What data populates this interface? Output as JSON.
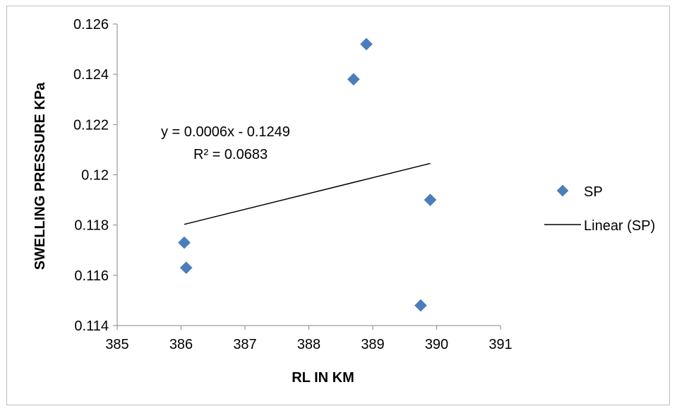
{
  "chart_data": {
    "type": "scatter",
    "title": "",
    "xlabel": "RL IN KM",
    "ylabel": "SWELLING PRESSURE KPa",
    "xlim": [
      385,
      391
    ],
    "ylim": [
      0.114,
      0.126
    ],
    "x_ticks": [
      "385",
      "386",
      "387",
      "388",
      "389",
      "390",
      "391"
    ],
    "y_ticks": [
      "0.114",
      "0.116",
      "0.118",
      "0.12",
      "0.122",
      "0.124",
      "0.126"
    ],
    "grid": false,
    "legend_position": "right",
    "series": [
      {
        "name": "SP",
        "marker": "diamond",
        "color": "#4a7ebb",
        "points": [
          {
            "x": 386.05,
            "y": 0.1173
          },
          {
            "x": 386.08,
            "y": 0.1163
          },
          {
            "x": 388.7,
            "y": 0.1238
          },
          {
            "x": 388.9,
            "y": 0.1252
          },
          {
            "x": 389.9,
            "y": 0.119
          },
          {
            "x": 389.75,
            "y": 0.1148
          }
        ]
      }
    ],
    "trendline": {
      "name": "Linear (SP)",
      "color": "#000000",
      "x_range": [
        386.05,
        389.9
      ],
      "equation": "y = 0.0006x - 0.1249",
      "r_squared": "R² = 0.0683"
    }
  }
}
